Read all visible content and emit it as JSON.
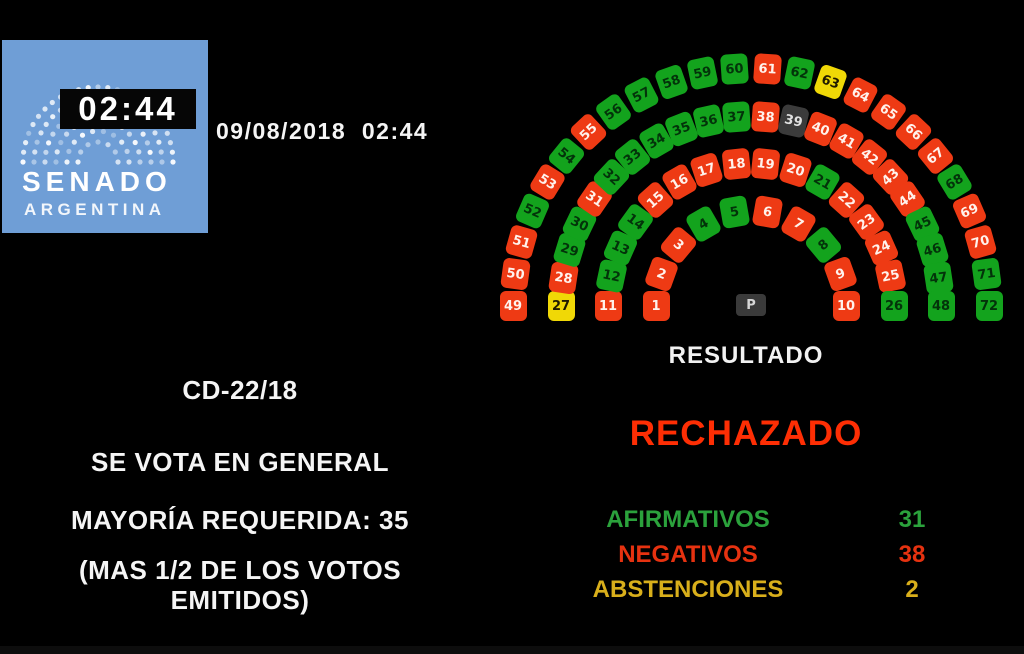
{
  "logo": {
    "timer": "02:44",
    "title": "SENADO",
    "subtitle": "ARGENTINA"
  },
  "header": {
    "datetime": "09/08/2018  02:44"
  },
  "ballot": {
    "code": "CD-22/18",
    "motion": "SE VOTA EN GENERAL",
    "majority": "MAYORÍA REQUERIDA: 35",
    "note_line1": "(MAS 1/2 DE LOS VOTOS",
    "note_line2": "EMITIDOS)"
  },
  "result": {
    "label": "RESULTADO",
    "value": "RECHAZADO",
    "value_color": "#fe2e04"
  },
  "tally": {
    "rows": [
      {
        "label": "AFIRMATIVOS",
        "value": "31",
        "color": "#2ba23c"
      },
      {
        "label": "NEGATIVOS",
        "value": "38",
        "color": "#e63210"
      },
      {
        "label": "ABSTENCIONES",
        "value": "2",
        "color": "#d9af1b"
      }
    ]
  },
  "hemicycle": {
    "president_label": "P",
    "status_colors": {
      "afirmativo": "#13a31d",
      "negativo": "#ee3a14",
      "abstencion": "#f0d806",
      "ausente": "#3b3b3b",
      "presidente": "#3a3a3a"
    },
    "text_colors": {
      "afirmativo": "#03330a",
      "negativo": "#fff2ec",
      "abstencion": "#201a00",
      "ausente": "#e0e0e0",
      "presidente": "#d6d6d6"
    },
    "rows": [
      {
        "seats": [
          {
            "n": 1,
            "v": "negativo"
          },
          {
            "n": 2,
            "v": "negativo"
          },
          {
            "n": 3,
            "v": "negativo"
          },
          {
            "n": 4,
            "v": "afirmativo"
          },
          {
            "n": 5,
            "v": "afirmativo"
          },
          {
            "n": 6,
            "v": "negativo"
          },
          {
            "n": 7,
            "v": "negativo"
          },
          {
            "n": 8,
            "v": "afirmativo"
          },
          {
            "n": 9,
            "v": "negativo"
          },
          {
            "n": 10,
            "v": "negativo"
          }
        ]
      },
      {
        "seats": [
          {
            "n": 11,
            "v": "negativo"
          },
          {
            "n": 12,
            "v": "afirmativo"
          },
          {
            "n": 13,
            "v": "afirmativo"
          },
          {
            "n": 14,
            "v": "afirmativo"
          },
          {
            "n": 15,
            "v": "negativo"
          },
          {
            "n": 16,
            "v": "negativo"
          },
          {
            "n": 17,
            "v": "negativo"
          },
          {
            "n": 18,
            "v": "negativo"
          },
          {
            "n": 19,
            "v": "negativo"
          },
          {
            "n": 20,
            "v": "negativo"
          },
          {
            "n": 21,
            "v": "afirmativo"
          },
          {
            "n": 22,
            "v": "negativo"
          },
          {
            "n": 23,
            "v": "negativo"
          },
          {
            "n": 24,
            "v": "negativo"
          },
          {
            "n": 25,
            "v": "negativo"
          },
          {
            "n": 26,
            "v": "afirmativo"
          }
        ]
      },
      {
        "seats": [
          {
            "n": 27,
            "v": "abstencion"
          },
          {
            "n": 28,
            "v": "negativo"
          },
          {
            "n": 29,
            "v": "afirmativo"
          },
          {
            "n": 30,
            "v": "afirmativo"
          },
          {
            "n": 31,
            "v": "negativo"
          },
          {
            "n": 32,
            "v": "afirmativo"
          },
          {
            "n": 33,
            "v": "afirmativo"
          },
          {
            "n": 34,
            "v": "afirmativo"
          },
          {
            "n": 35,
            "v": "afirmativo"
          },
          {
            "n": 36,
            "v": "afirmativo"
          },
          {
            "n": 37,
            "v": "afirmativo"
          },
          {
            "n": 38,
            "v": "negativo"
          },
          {
            "n": 39,
            "v": "ausente"
          },
          {
            "n": 40,
            "v": "negativo"
          },
          {
            "n": 41,
            "v": "negativo"
          },
          {
            "n": 42,
            "v": "negativo"
          },
          {
            "n": 43,
            "v": "negativo"
          },
          {
            "n": 44,
            "v": "negativo"
          },
          {
            "n": 45,
            "v": "afirmativo"
          },
          {
            "n": 46,
            "v": "afirmativo"
          },
          {
            "n": 47,
            "v": "afirmativo"
          },
          {
            "n": 48,
            "v": "afirmativo"
          }
        ]
      },
      {
        "seats": [
          {
            "n": 49,
            "v": "negativo"
          },
          {
            "n": 50,
            "v": "negativo"
          },
          {
            "n": 51,
            "v": "negativo"
          },
          {
            "n": 52,
            "v": "afirmativo"
          },
          {
            "n": 53,
            "v": "negativo"
          },
          {
            "n": 54,
            "v": "afirmativo"
          },
          {
            "n": 55,
            "v": "negativo"
          },
          {
            "n": 56,
            "v": "afirmativo"
          },
          {
            "n": 57,
            "v": "afirmativo"
          },
          {
            "n": 58,
            "v": "afirmativo"
          },
          {
            "n": 59,
            "v": "afirmativo"
          },
          {
            "n": 60,
            "v": "afirmativo"
          },
          {
            "n": 61,
            "v": "negativo"
          },
          {
            "n": 62,
            "v": "afirmativo"
          },
          {
            "n": 63,
            "v": "abstencion"
          },
          {
            "n": 64,
            "v": "negativo"
          },
          {
            "n": 65,
            "v": "negativo"
          },
          {
            "n": 66,
            "v": "negativo"
          },
          {
            "n": 67,
            "v": "negativo"
          },
          {
            "n": 68,
            "v": "afirmativo"
          },
          {
            "n": 69,
            "v": "negativo"
          },
          {
            "n": 70,
            "v": "negativo"
          },
          {
            "n": 71,
            "v": "afirmativo"
          },
          {
            "n": 72,
            "v": "afirmativo"
          }
        ]
      }
    ]
  }
}
